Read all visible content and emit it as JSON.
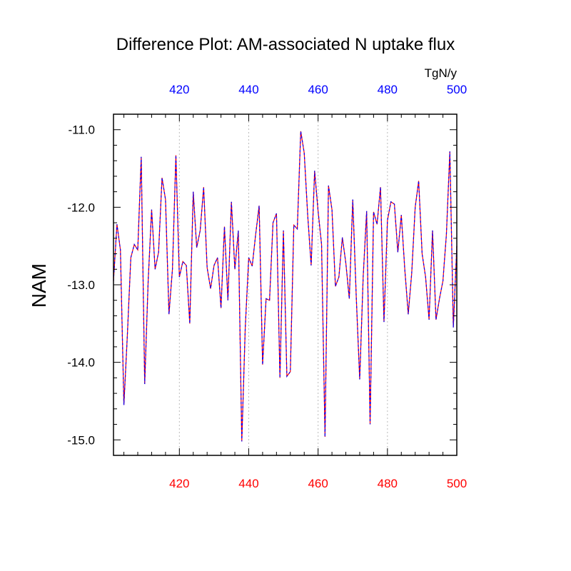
{
  "chart_data": {
    "type": "line",
    "title": "Difference Plot: AM-associated N uptake flux",
    "units_label": "TgN/y",
    "ylabel": "NAM",
    "xlim": [
      401,
      500
    ],
    "ylim": [
      -15.2,
      -10.8
    ],
    "x_ticks": [
      420,
      440,
      460,
      480,
      500
    ],
    "y_ticks": [
      -11.0,
      -12.0,
      -13.0,
      -14.0,
      -15.0
    ],
    "y_tick_labels": [
      "-11.0",
      "-12.0",
      "-13.0",
      "-14.0",
      "-15.0"
    ],
    "grid_x": true,
    "colors": {
      "bottom_axis": "#ff0000",
      "top_axis": "#0000ff",
      "series_a": "#ff0000",
      "series_b": "#0000ff",
      "grid": "#bbbbbb"
    },
    "x": [
      401,
      402,
      403,
      404,
      405,
      406,
      407,
      408,
      409,
      410,
      411,
      412,
      413,
      414,
      415,
      416,
      417,
      418,
      419,
      420,
      421,
      422,
      423,
      424,
      425,
      426,
      427,
      428,
      429,
      430,
      431,
      432,
      433,
      434,
      435,
      436,
      437,
      438,
      439,
      440,
      441,
      442,
      443,
      444,
      445,
      446,
      447,
      448,
      449,
      450,
      451,
      452,
      453,
      454,
      455,
      456,
      457,
      458,
      459,
      460,
      461,
      462,
      463,
      464,
      465,
      466,
      467,
      468,
      469,
      470,
      471,
      472,
      473,
      474,
      475,
      476,
      477,
      478,
      479,
      480,
      481,
      482,
      483,
      484,
      485,
      486,
      487,
      488,
      489,
      490,
      491,
      492,
      493,
      494,
      495,
      496,
      497,
      498,
      499,
      500
    ],
    "series": [
      {
        "values": [
          -12.95,
          -12.22,
          -12.55,
          -14.55,
          -13.65,
          -12.65,
          -12.48,
          -12.55,
          -11.35,
          -14.28,
          -12.95,
          -12.03,
          -12.8,
          -12.58,
          -11.62,
          -11.9,
          -13.38,
          -12.8,
          -11.33,
          -12.9,
          -12.7,
          -12.75,
          -13.5,
          -11.8,
          -12.52,
          -12.3,
          -11.74,
          -12.78,
          -13.05,
          -12.75,
          -12.65,
          -13.3,
          -12.25,
          -13.2,
          -11.93,
          -12.8,
          -12.3,
          -15.02,
          -13.55,
          -12.65,
          -12.76,
          -12.35,
          -11.98,
          -14.03,
          -13.18,
          -13.2,
          -12.2,
          -12.08,
          -14.2,
          -12.3,
          -14.18,
          -14.12,
          -12.23,
          -12.28,
          -11.02,
          -11.3,
          -12.1,
          -12.75,
          -11.53,
          -12.05,
          -12.48,
          -14.96,
          -11.72,
          -12.03,
          -13.02,
          -12.9,
          -12.39,
          -12.72,
          -13.18,
          -11.9,
          -13.15,
          -14.22,
          -12.9,
          -12.05,
          -14.8,
          -12.06,
          -12.22,
          -11.74,
          -13.48,
          -12.17,
          -11.93,
          -11.96,
          -12.58,
          -12.1,
          -12.8,
          -13.38,
          -12.85,
          -12.0,
          -11.66,
          -12.6,
          -12.9,
          -13.45,
          -12.3,
          -13.45,
          -13.18,
          -12.95,
          -12.35,
          -11.28,
          -13.55,
          -12.5
        ]
      }
    ]
  }
}
